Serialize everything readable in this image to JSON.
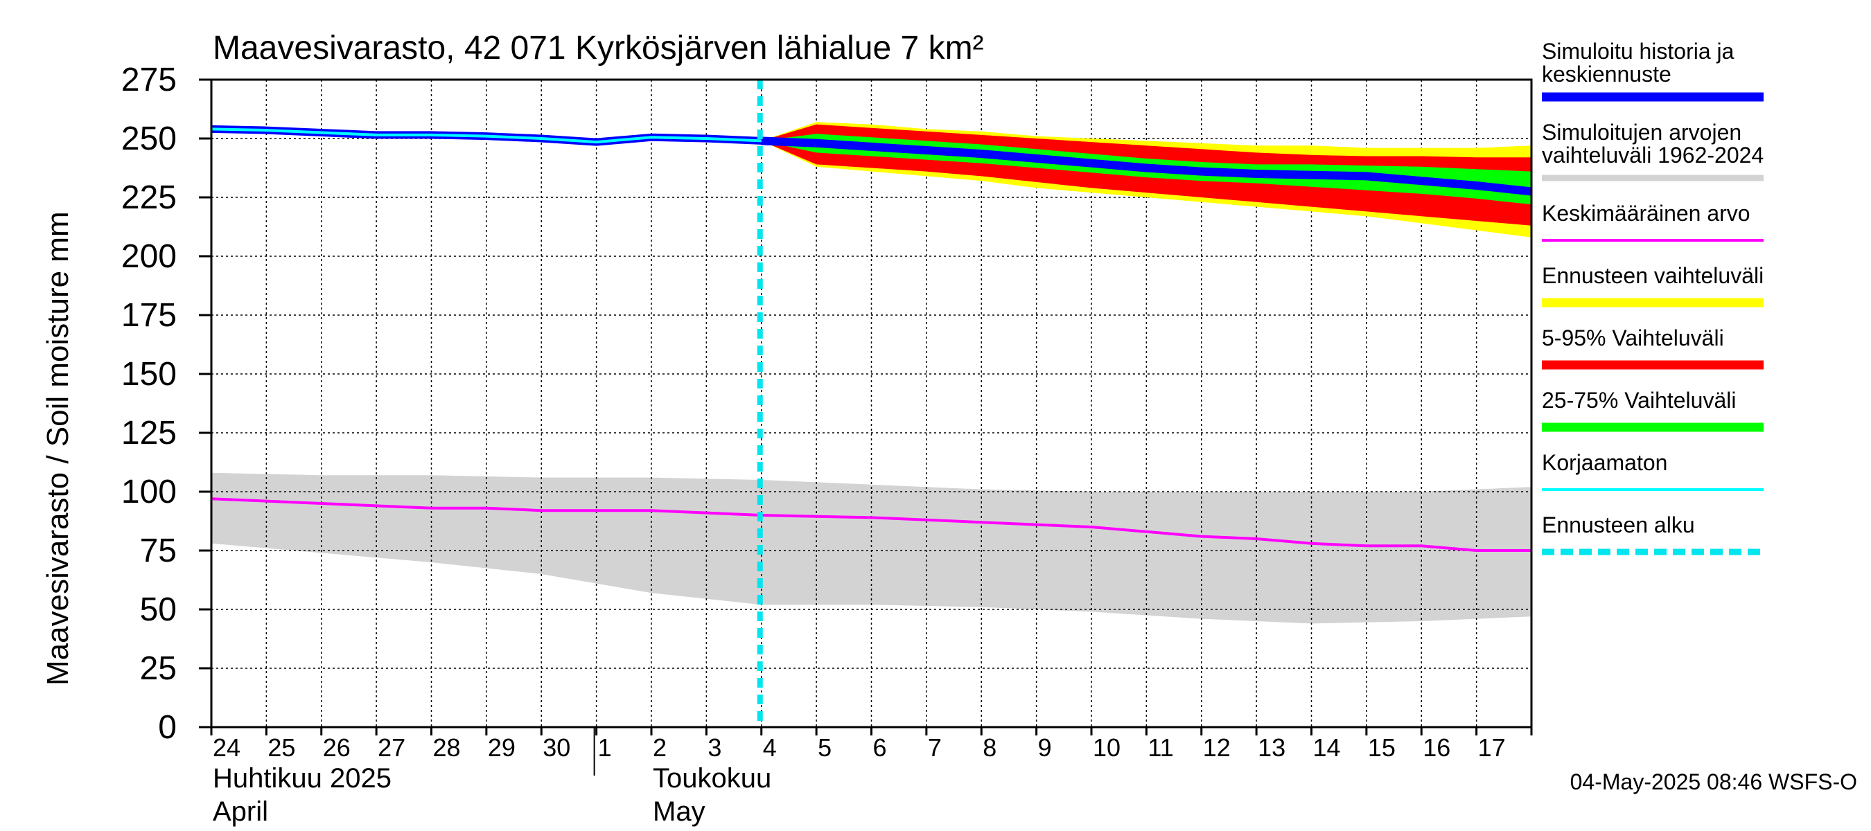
{
  "chart_data": {
    "type": "area",
    "title": "Maavesivarasto, 42 071 Kyrkösjärven lähialue 7 km²",
    "ylabel": "Maavesivarasto / Soil moisture   mm",
    "ylim": [
      0,
      275
    ],
    "yticks": [
      "0",
      "25",
      "50",
      "75",
      "100",
      "125",
      "150",
      "175",
      "200",
      "225",
      "250",
      "275"
    ],
    "grid": true,
    "legend_position": "right",
    "x_start": "2025-04-24",
    "x_end": "2025-05-18",
    "forecast_start": "2025-05-04",
    "day_ticks": [
      "24",
      "25",
      "26",
      "27",
      "28",
      "29",
      "30",
      "1",
      "2",
      "3",
      "4",
      "5",
      "6",
      "7",
      "8",
      "9",
      "10",
      "11",
      "12",
      "13",
      "14",
      "15",
      "16",
      "17"
    ],
    "month_labels": [
      {
        "line1": "Huhtikuu  2025",
        "line2": "April",
        "date": "2025-04-24"
      },
      {
        "line1": "Toukokuu",
        "line2": "May",
        "date": "2025-05-02"
      }
    ],
    "month_separators": [
      "2025-05-01"
    ],
    "footer": "04-May-2025 08:46 WSFS-O",
    "legend": [
      {
        "label": "Simuloitu historia ja",
        "label2": "keskiennuste",
        "color": "#0000ff",
        "style": "thick"
      },
      {
        "label": "Simuloitujen arvojen",
        "label2": "vaihteluväli 1962-2024",
        "color": "#d3d3d3",
        "style": "thin"
      },
      {
        "label": "Keskimääräinen arvo",
        "label2": "",
        "color": "#ff00ff",
        "style": "line"
      },
      {
        "label": "Ennusteen vaihteluväli",
        "label2": "",
        "color": "#ffff00",
        "style": "thick"
      },
      {
        "label": "5-95% Vaihteluväli",
        "label2": "",
        "color": "#ff0000",
        "style": "thick"
      },
      {
        "label": "25-75% Vaihteluväli",
        "label2": "",
        "color": "#00ff00",
        "style": "thick"
      },
      {
        "label": "Korjaamaton",
        "label2": "",
        "color": "#00ffff",
        "style": "line"
      },
      {
        "label": "Ennusteen alku",
        "label2": "",
        "color": "#00e5ee",
        "style": "dashed"
      }
    ],
    "series": {
      "history_range": {
        "x": [
          "2025-04-24",
          "2025-04-26",
          "2025-04-28",
          "2025-04-30",
          "2025-05-02",
          "2025-05-04",
          "2025-05-06",
          "2025-05-08",
          "2025-05-10",
          "2025-05-12",
          "2025-05-14",
          "2025-05-16",
          "2025-05-18"
        ],
        "upper": [
          108,
          107,
          107,
          106,
          106,
          105,
          103,
          101,
          100,
          100,
          100,
          100,
          102
        ],
        "lower": [
          78,
          74,
          70,
          65,
          57,
          52,
          52,
          51,
          49,
          46,
          44,
          45,
          47
        ]
      },
      "mean": {
        "x": [
          "2025-04-24",
          "2025-04-25",
          "2025-04-26",
          "2025-04-27",
          "2025-04-28",
          "2025-04-29",
          "2025-04-30",
          "2025-05-01",
          "2025-05-02",
          "2025-05-03",
          "2025-05-04",
          "2025-05-05",
          "2025-05-06",
          "2025-05-07",
          "2025-05-08",
          "2025-05-09",
          "2025-05-10",
          "2025-05-11",
          "2025-05-12",
          "2025-05-13",
          "2025-05-14",
          "2025-05-15",
          "2025-05-16",
          "2025-05-17",
          "2025-05-18"
        ],
        "values": [
          97,
          96,
          95,
          94,
          93,
          93,
          92,
          92,
          92,
          91,
          90,
          89.5,
          89,
          88,
          87,
          86,
          85,
          83,
          81,
          80,
          78,
          77,
          77,
          75,
          75
        ]
      },
      "history": {
        "x": [
          "2025-04-24",
          "2025-04-25",
          "2025-04-26",
          "2025-04-27",
          "2025-04-28",
          "2025-04-29",
          "2025-04-30",
          "2025-05-01",
          "2025-05-02",
          "2025-05-03",
          "2025-05-04"
        ],
        "values": [
          254,
          253.5,
          252.5,
          251.5,
          251.5,
          251,
          250,
          248.5,
          250.5,
          250,
          249
        ]
      },
      "uncorrected": {
        "x": [
          "2025-04-24",
          "2025-04-25",
          "2025-04-26",
          "2025-04-27",
          "2025-04-28",
          "2025-04-29",
          "2025-04-30",
          "2025-05-01",
          "2025-05-02",
          "2025-05-03",
          "2025-05-04"
        ],
        "values": [
          254,
          253.5,
          252.5,
          251.5,
          251.5,
          251,
          250,
          248.5,
          250.5,
          250,
          249
        ]
      },
      "forecast_x": [
        "2025-05-04",
        "2025-05-05",
        "2025-05-06",
        "2025-05-07",
        "2025-05-08",
        "2025-05-09",
        "2025-05-10",
        "2025-05-11",
        "2025-05-12",
        "2025-05-13",
        "2025-05-14",
        "2025-05-15",
        "2025-05-16",
        "2025-05-17",
        "2025-05-18"
      ],
      "forecast_range": {
        "upper": [
          249,
          257,
          256,
          254,
          253,
          251,
          250,
          249,
          248,
          247,
          247,
          246,
          246,
          246,
          247
        ],
        "lower": [
          249,
          238,
          236,
          234,
          232,
          229,
          227,
          225,
          223,
          221,
          219,
          217,
          214,
          211,
          208
        ]
      },
      "p5_95": {
        "upper": [
          249,
          256,
          254.5,
          253,
          251.5,
          250,
          248.5,
          247,
          245.5,
          244,
          243,
          242.5,
          242.5,
          242,
          242
        ]
      },
      "p5_95_lower": [
        249,
        239,
        237.5,
        236,
        234,
        231.5,
        229,
        227,
        225,
        223,
        221,
        219,
        217,
        215,
        213
      ],
      "p25_75": {
        "upper": [
          249,
          252,
          250.5,
          249,
          247.5,
          245.5,
          243.5,
          241.5,
          240,
          239,
          239,
          238.5,
          238,
          237,
          236
        ],
        "lower": [
          249,
          244,
          242.5,
          241,
          239.5,
          237.5,
          235.5,
          233.5,
          232,
          231,
          229.5,
          228,
          226.5,
          224.5,
          222
        ]
      },
      "median": [
        249,
        248,
        246.5,
        245,
        243.5,
        241.5,
        239.5,
        237.5,
        236,
        235,
        234.5,
        234,
        232,
        230,
        227.5
      ]
    }
  }
}
